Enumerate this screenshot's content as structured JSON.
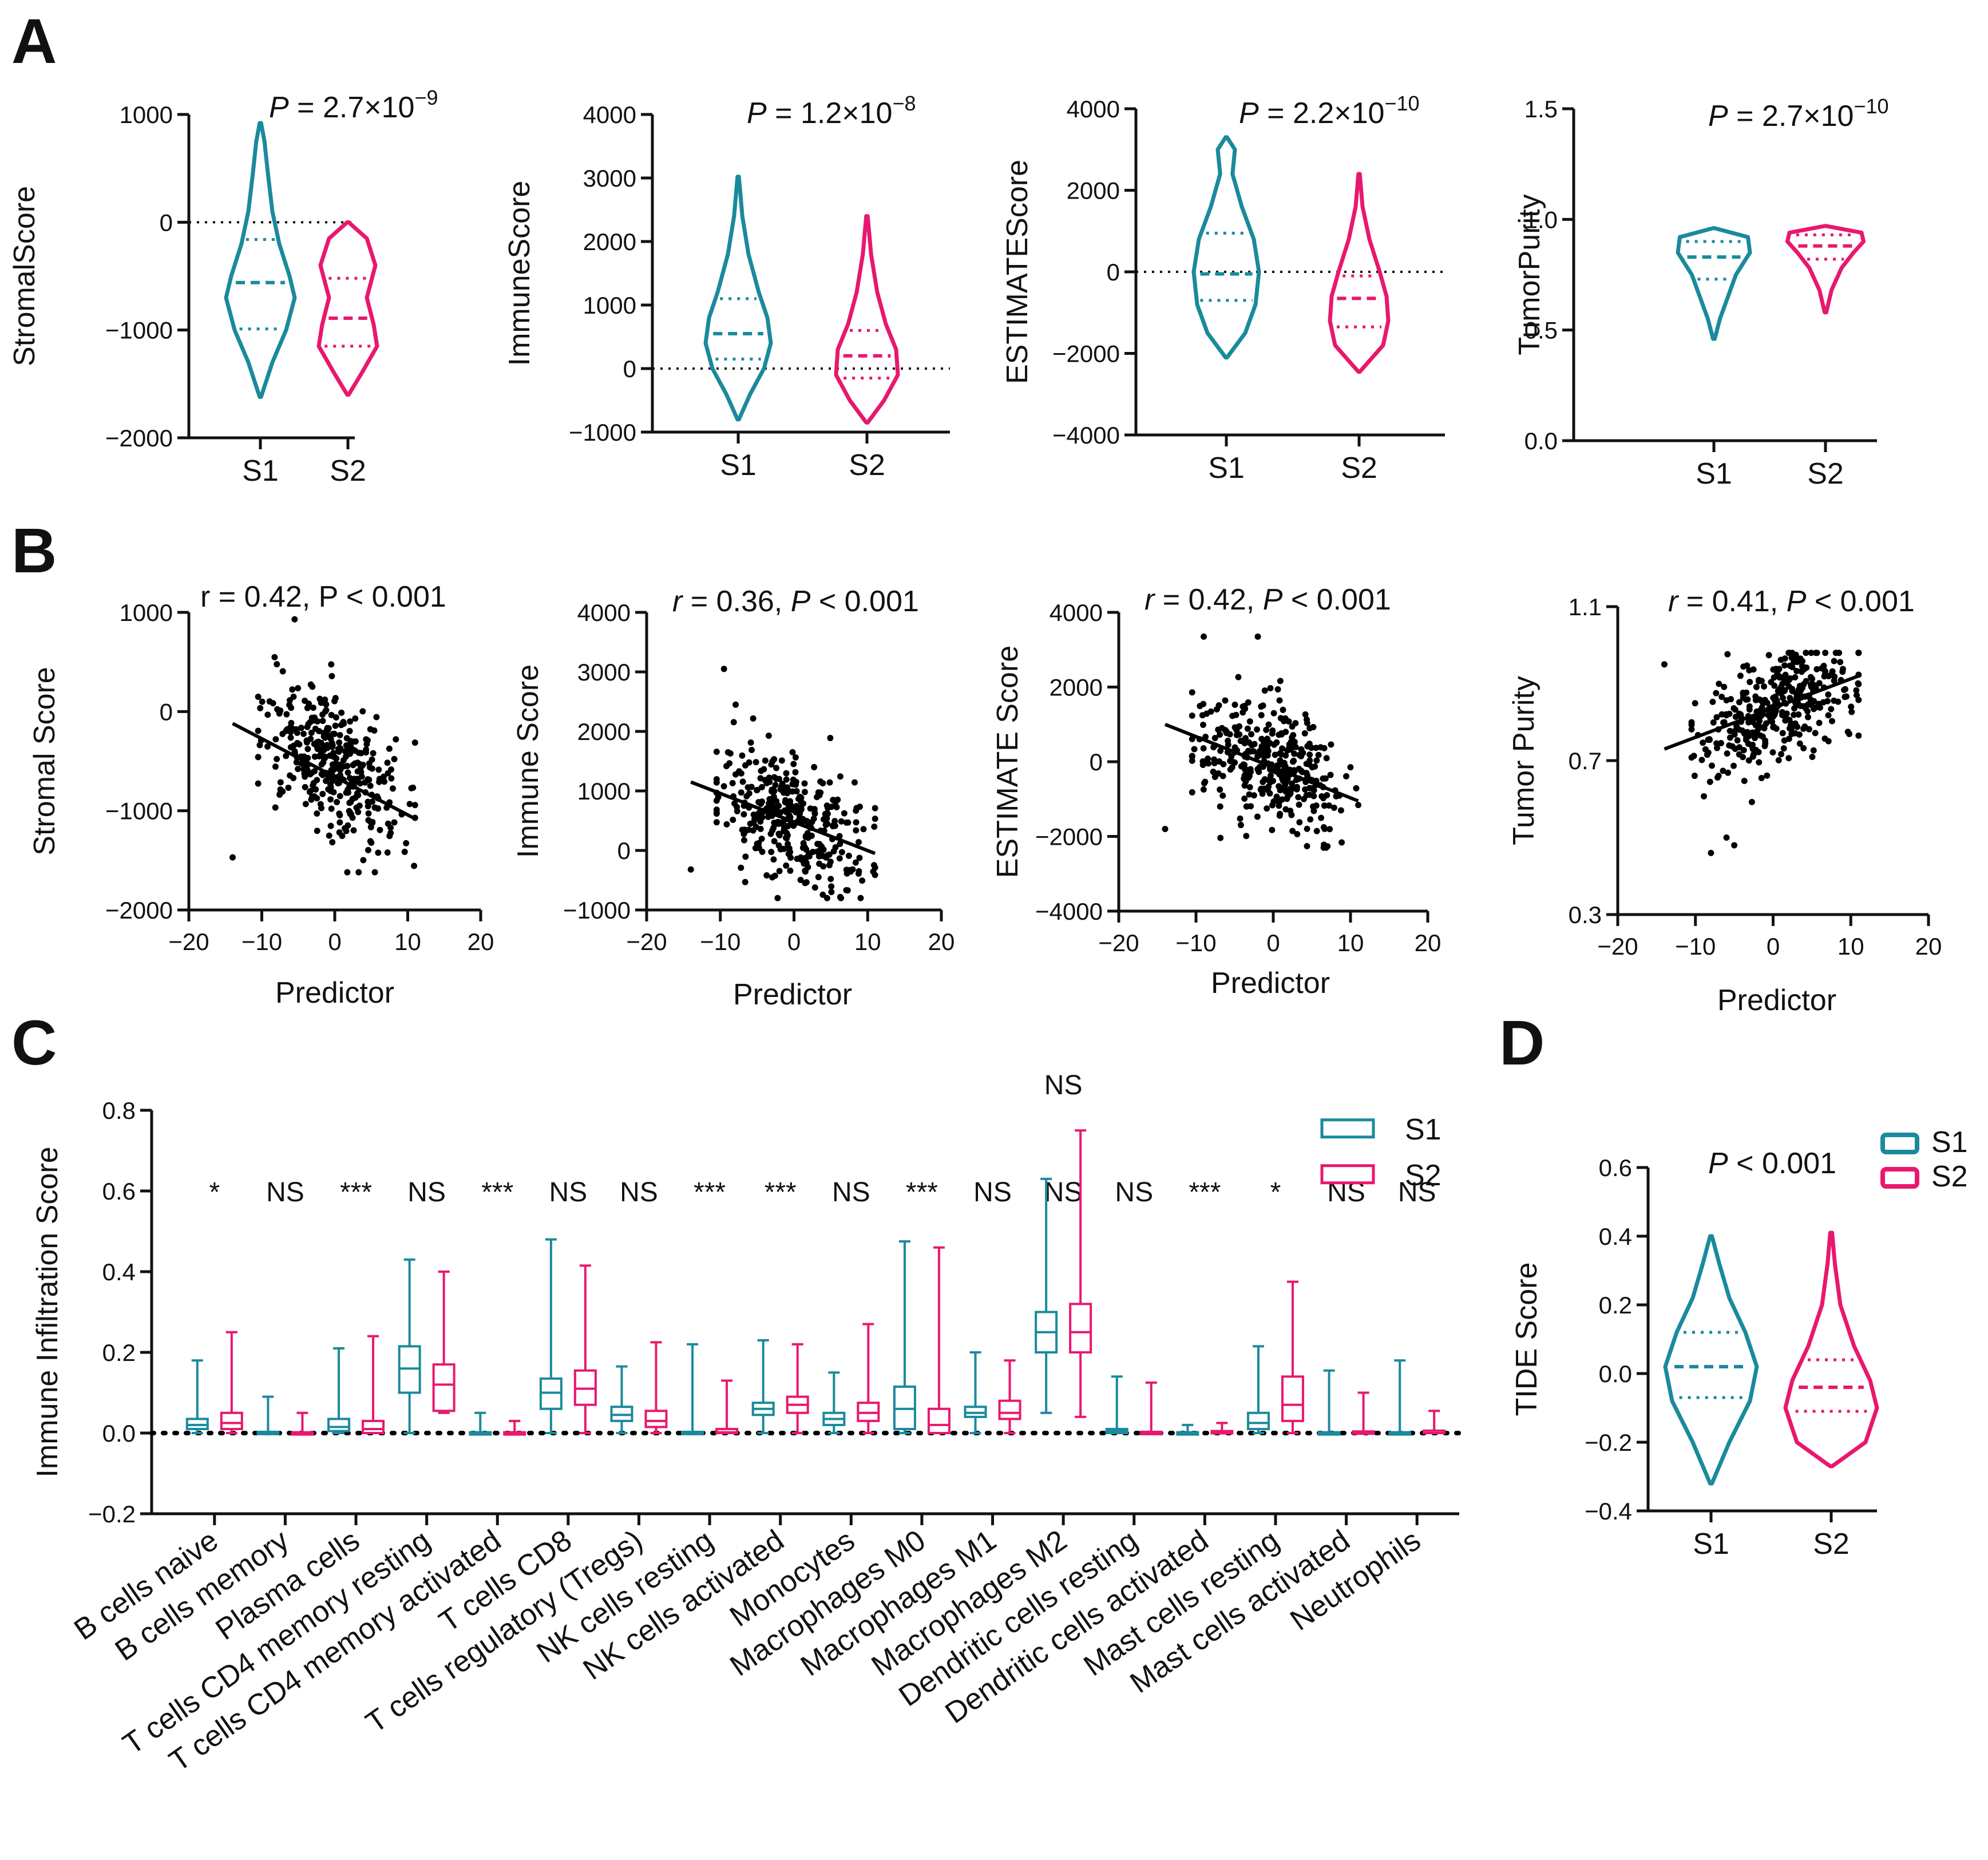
{
  "colors": {
    "s1": "#1a8a9c",
    "s2": "#e8186e",
    "axis": "#111111"
  },
  "panel_letters": {
    "A": "A",
    "B": "B",
    "C": "C",
    "D": "D"
  },
  "chart_data": [
    {
      "id": "A1",
      "type": "violin",
      "title": "",
      "ylabel": "StromalScore",
      "categories": [
        "S1",
        "S2"
      ],
      "ylim": [
        -2000,
        1000
      ],
      "yticks": [
        "−2000",
        "−1000",
        "0",
        "1000"
      ],
      "ytick_values": [
        -2000,
        -1000,
        0,
        1000
      ],
      "p_prefix": "P",
      "p_text": " = 2.7×10",
      "p_exp": "−9",
      "series": [
        {
          "name": "S1",
          "min": -1620,
          "max": 920,
          "median": -560,
          "q1": -990,
          "q3": -160,
          "width_ys": [
            -1620,
            -1300,
            -1000,
            -700,
            -500,
            -200,
            100,
            450,
            750,
            920
          ],
          "width_vals": [
            0.02,
            0.35,
            0.75,
            1.0,
            0.85,
            0.55,
            0.35,
            0.22,
            0.12,
            0.02
          ]
        },
        {
          "name": "S2",
          "min": -1600,
          "max": 0,
          "median": -890,
          "q1": -1150,
          "q3": -520,
          "width_ys": [
            -1600,
            -1400,
            -1150,
            -950,
            -700,
            -400,
            -150,
            0
          ],
          "width_vals": [
            0.02,
            0.4,
            0.85,
            0.75,
            0.55,
            0.8,
            0.55,
            0.02
          ]
        }
      ]
    },
    {
      "id": "A2",
      "type": "violin",
      "ylabel": "ImmuneScore",
      "categories": [
        "S1",
        "S2"
      ],
      "ylim": [
        -1000,
        4000
      ],
      "yticks": [
        "−1000",
        "0",
        "1000",
        "2000",
        "3000",
        "4000"
      ],
      "ytick_values": [
        -1000,
        0,
        1000,
        2000,
        3000,
        4000
      ],
      "p_prefix": "P",
      "p_text": " = 1.2×10",
      "p_exp": "−8",
      "series": [
        {
          "name": "S1",
          "min": -800,
          "max": 3020,
          "median": 550,
          "q1": 150,
          "q3": 1100,
          "width_ys": [
            -800,
            -400,
            0,
            400,
            800,
            1200,
            1800,
            2400,
            3020
          ],
          "width_vals": [
            0.02,
            0.35,
            0.75,
            0.95,
            0.85,
            0.6,
            0.3,
            0.12,
            0.02
          ]
        },
        {
          "name": "S2",
          "min": -850,
          "max": 2400,
          "median": 200,
          "q1": -150,
          "q3": 600,
          "width_ys": [
            -850,
            -500,
            -100,
            300,
            700,
            1200,
            1800,
            2400
          ],
          "width_vals": [
            0.02,
            0.5,
            0.9,
            0.85,
            0.55,
            0.3,
            0.12,
            0.02
          ]
        }
      ]
    },
    {
      "id": "A3",
      "type": "violin",
      "ylabel": "ESTIMATEScore",
      "categories": [
        "S1",
        "S2"
      ],
      "ylim": [
        -4000,
        4000
      ],
      "yticks": [
        "−4000",
        "−2000",
        "0",
        "2000",
        "4000"
      ],
      "ytick_values": [
        -4000,
        -2000,
        0,
        2000,
        4000
      ],
      "p_prefix": "P",
      "p_text": " = 2.2×10",
      "p_exp": "−10",
      "series": [
        {
          "name": "S1",
          "min": -2100,
          "max": 3300,
          "median": -50,
          "q1": -700,
          "q3": 950,
          "width_ys": [
            -2100,
            -1500,
            -800,
            0,
            800,
            1600,
            2400,
            3000,
            3300
          ],
          "width_vals": [
            0.02,
            0.55,
            0.85,
            0.95,
            0.8,
            0.45,
            0.18,
            0.25,
            0.02
          ]
        },
        {
          "name": "S2",
          "min": -2450,
          "max": 2400,
          "median": -650,
          "q1": -1350,
          "q3": -100,
          "width_ys": [
            -2450,
            -1800,
            -1200,
            -600,
            0,
            800,
            1600,
            2400
          ],
          "width_vals": [
            0.02,
            0.7,
            0.85,
            0.8,
            0.6,
            0.3,
            0.1,
            0.02
          ]
        }
      ]
    },
    {
      "id": "A4",
      "type": "violin",
      "ylabel": "TumorPurity",
      "categories": [
        "S1",
        "S2"
      ],
      "ylim": [
        0.0,
        1.5
      ],
      "yticks": [
        "0.0",
        "0.5",
        "1.0",
        "1.5"
      ],
      "ytick_values": [
        0.0,
        0.5,
        1.0,
        1.5
      ],
      "p_prefix": "P",
      "p_text": " = 2.7×10",
      "p_exp": "−10",
      "series": [
        {
          "name": "S1",
          "min": 0.46,
          "max": 0.96,
          "median": 0.83,
          "q1": 0.73,
          "q3": 0.9,
          "width_ys": [
            0.46,
            0.55,
            0.65,
            0.75,
            0.85,
            0.92,
            0.96
          ],
          "width_vals": [
            0.02,
            0.15,
            0.35,
            0.55,
            0.9,
            0.85,
            0.02
          ]
        },
        {
          "name": "S2",
          "min": 0.58,
          "max": 0.97,
          "median": 0.88,
          "q1": 0.82,
          "q3": 0.93,
          "width_ys": [
            0.58,
            0.68,
            0.78,
            0.85,
            0.9,
            0.94,
            0.97
          ],
          "width_vals": [
            0.02,
            0.15,
            0.4,
            0.7,
            0.95,
            0.9,
            0.02
          ]
        }
      ]
    },
    {
      "id": "B1",
      "type": "scatter",
      "xlabel": "Predictor",
      "ylabel": "Stromal Score",
      "xlim": [
        -20,
        20
      ],
      "ylim": [
        -2000,
        1000
      ],
      "xticks": [
        "−20",
        "−10",
        "0",
        "10",
        "20"
      ],
      "xtick_values": [
        -20,
        -10,
        0,
        10,
        20
      ],
      "yticks": [
        "−2000",
        "−1000",
        "0",
        "1000"
      ],
      "ytick_values": [
        -2000,
        -1000,
        0,
        1000
      ],
      "annotation": "r = 0.42, P < 0.001",
      "italic_annotation": false,
      "fit": {
        "x0": -14,
        "y0": -120,
        "x1": 11,
        "y1": -1080
      },
      "cloud": {
        "n": 360,
        "x_mean": 0,
        "x_sd": 5,
        "slope": -38,
        "intercept": -560,
        "resid_sd": 330,
        "ymin": -1620,
        "ymax": 920
      },
      "outliers": [
        [
          -14,
          -1470
        ],
        [
          -5.5,
          930
        ]
      ]
    },
    {
      "id": "B2",
      "type": "scatter",
      "xlabel": "Predictor",
      "ylabel": "Immune Score",
      "xlim": [
        -20,
        20
      ],
      "ylim": [
        -1000,
        4000
      ],
      "xticks": [
        "−20",
        "−10",
        "0",
        "10",
        "20"
      ],
      "xtick_values": [
        -20,
        -10,
        0,
        10,
        20
      ],
      "yticks": [
        "−1000",
        "0",
        "1000",
        "2000",
        "3000",
        "4000"
      ],
      "ytick_values": [
        -1000,
        0,
        1000,
        2000,
        3000,
        4000
      ],
      "annotation_parts": [
        "r",
        " = 0.36, ",
        "P",
        " < 0.001"
      ],
      "fit": {
        "x0": -14,
        "y0": 1150,
        "x1": 11,
        "y1": -50
      },
      "cloud": {
        "n": 360,
        "x_mean": 0,
        "x_sd": 5,
        "slope": -48,
        "intercept": 480,
        "resid_sd": 520,
        "ymin": -800,
        "ymax": 2600
      },
      "outliers": [
        [
          -14,
          -320
        ],
        [
          -9.5,
          3050
        ]
      ]
    },
    {
      "id": "B3",
      "type": "scatter",
      "xlabel": "Predictor",
      "ylabel": "ESTIMATE Score",
      "xlim": [
        -20,
        20
      ],
      "ylim": [
        -4000,
        4000
      ],
      "xticks": [
        "−20",
        "−10",
        "0",
        "10",
        "20"
      ],
      "xtick_values": [
        -20,
        -10,
        0,
        10,
        20
      ],
      "yticks": [
        "−4000",
        "−2000",
        "0",
        "2000",
        "4000"
      ],
      "ytick_values": [
        -4000,
        -2000,
        0,
        2000,
        4000
      ],
      "annotation_parts": [
        "r",
        " = 0.42, ",
        "P",
        " < 0.001"
      ],
      "fit": {
        "x0": -14,
        "y0": 1000,
        "x1": 11,
        "y1": -1050
      },
      "cloud": {
        "n": 360,
        "x_mean": 0,
        "x_sd": 5,
        "slope": -82,
        "intercept": -80,
        "resid_sd": 780,
        "ymin": -2300,
        "ymax": 3000
      },
      "outliers": [
        [
          -14,
          -1800
        ],
        [
          -9,
          3350
        ],
        [
          -2,
          3350
        ]
      ]
    },
    {
      "id": "B4",
      "type": "scatter",
      "xlabel": "Predictor",
      "ylabel": "Tumor Purity",
      "xlim": [
        -20,
        20
      ],
      "ylim": [
        0.3,
        1.1
      ],
      "xticks": [
        "−20",
        "−10",
        "0",
        "10",
        "20"
      ],
      "xtick_values": [
        -20,
        -10,
        0,
        10,
        20
      ],
      "yticks": [
        "0.3",
        "0.7",
        "1.1"
      ],
      "ytick_values": [
        0.3,
        0.7,
        1.1
      ],
      "annotation_parts": [
        "r",
        " = 0.41, ",
        "P",
        " < 0.001"
      ],
      "fit": {
        "x0": -14,
        "y0": 0.73,
        "x1": 11,
        "y1": 0.92
      },
      "cloud": {
        "n": 360,
        "x_mean": 0,
        "x_sd": 5,
        "slope": 0.0076,
        "intercept": 0.835,
        "resid_sd": 0.075,
        "ymin": 0.55,
        "ymax": 0.98
      },
      "outliers": [
        [
          -14,
          0.95
        ],
        [
          -8,
          0.46
        ],
        [
          -5,
          0.48
        ],
        [
          -6,
          0.5
        ]
      ]
    },
    {
      "id": "C",
      "type": "boxplot",
      "ylabel": "Immune Infiltration Score",
      "ylim": [
        -0.2,
        0.8
      ],
      "yticks": [
        "−0.2",
        "0.0",
        "0.2",
        "0.4",
        "0.6",
        "0.8"
      ],
      "ytick_values": [
        -0.2,
        0.0,
        0.2,
        0.4,
        0.6,
        0.8
      ],
      "legend": [
        "S1",
        "S2"
      ],
      "categories": [
        "B cells naive",
        "B cells memory",
        "Plasma cells",
        "T cells CD4 memory resting",
        "T cells CD4 memory activated",
        "T cells CD8",
        "T cells regulatory (Tregs)",
        "NK cells resting",
        "NK cells activated",
        "Monocytes",
        "Macrophages M0",
        "Macrophages M1",
        "Macrophages M2",
        "Dendritic cells resting",
        "Dendritic cells activated",
        "Mast cells resting",
        "Mast cells activated",
        "Neutrophils"
      ],
      "significance": [
        "*",
        "NS",
        "***",
        "NS",
        "***",
        "NS",
        "NS",
        "***",
        "***",
        "NS",
        "***",
        "NS",
        "NS",
        "NS",
        "***",
        "*",
        "NS",
        "NS"
      ],
      "series": [
        {
          "name": "S1",
          "boxes": [
            [
              0,
              0.01,
              0.02,
              0.035,
              0.18
            ],
            [
              0,
              0,
              0,
              0.003,
              0.09
            ],
            [
              0,
              0.005,
              0.015,
              0.035,
              0.21
            ],
            [
              0,
              0.1,
              0.16,
              0.215,
              0.43
            ],
            [
              0,
              0,
              0,
              0.002,
              0.05
            ],
            [
              0,
              0.06,
              0.1,
              0.135,
              0.48
            ],
            [
              0,
              0.03,
              0.045,
              0.065,
              0.165
            ],
            [
              0,
              0,
              0,
              0.003,
              0.22
            ],
            [
              0,
              0.045,
              0.06,
              0.075,
              0.23
            ],
            [
              0,
              0.02,
              0.035,
              0.05,
              0.15
            ],
            [
              0,
              0.01,
              0.06,
              0.115,
              0.475
            ],
            [
              0,
              0.04,
              0.05,
              0.065,
              0.2
            ],
            [
              0.05,
              0.2,
              0.25,
              0.3,
              0.63
            ],
            [
              0,
              0,
              0.005,
              0.01,
              0.14
            ],
            [
              0,
              0,
              0,
              0.002,
              0.02
            ],
            [
              0,
              0.01,
              0.025,
              0.05,
              0.215
            ],
            [
              0,
              0,
              0,
              0.002,
              0.155
            ],
            [
              0,
              0,
              0,
              0.002,
              0.18
            ]
          ]
        },
        {
          "name": "S2",
          "boxes": [
            [
              0,
              0.01,
              0.025,
              0.05,
              0.25
            ],
            [
              0,
              0,
              0,
              0.002,
              0.05
            ],
            [
              0,
              0,
              0.01,
              0.03,
              0.24
            ],
            [
              0.05,
              0.055,
              0.12,
              0.17,
              0.4
            ],
            [
              0,
              0,
              0,
              0.002,
              0.03
            ],
            [
              0,
              0.07,
              0.11,
              0.155,
              0.415
            ],
            [
              0,
              0.015,
              0.03,
              0.055,
              0.225
            ],
            [
              0,
              0,
              0.002,
              0.01,
              0.13
            ],
            [
              0,
              0.05,
              0.07,
              0.09,
              0.22
            ],
            [
              0,
              0.03,
              0.05,
              0.075,
              0.27
            ],
            [
              0,
              0,
              0.02,
              0.06,
              0.46
            ],
            [
              0,
              0.035,
              0.05,
              0.08,
              0.18
            ],
            [
              0.04,
              0.2,
              0.25,
              0.32,
              0.75
            ],
            [
              0,
              0,
              0,
              0.003,
              0.125
            ],
            [
              0,
              0,
              0,
              0.005,
              0.025
            ],
            [
              0,
              0.03,
              0.07,
              0.14,
              0.375
            ],
            [
              0,
              0,
              0,
              0.004,
              0.1
            ],
            [
              0,
              0,
              0,
              0.006,
              0.055
            ]
          ]
        }
      ]
    },
    {
      "id": "D",
      "type": "violin",
      "ylabel": "TIDE Score",
      "categories": [
        "S1",
        "S2"
      ],
      "ylim": [
        -0.4,
        0.6
      ],
      "yticks": [
        "−0.4",
        "−0.2",
        "0.0",
        "0.2",
        "0.4",
        "0.6"
      ],
      "ytick_values": [
        -0.4,
        -0.2,
        0.0,
        0.2,
        0.4,
        0.6
      ],
      "p_prefix": "P",
      "p_text": " < 0.001",
      "p_exp": "",
      "legend": [
        "S1",
        "S2"
      ],
      "series": [
        {
          "name": "S1",
          "min": -0.32,
          "max": 0.4,
          "median": 0.02,
          "q1": -0.07,
          "q3": 0.12,
          "width_ys": [
            -0.32,
            -0.2,
            -0.08,
            0.02,
            0.12,
            0.22,
            0.32,
            0.4
          ],
          "width_vals": [
            0.02,
            0.4,
            0.85,
            1.0,
            0.75,
            0.4,
            0.18,
            0.02
          ]
        },
        {
          "name": "S2",
          "min": -0.27,
          "max": 0.41,
          "median": -0.04,
          "q1": -0.11,
          "q3": 0.04,
          "width_ys": [
            -0.27,
            -0.2,
            -0.1,
            -0.02,
            0.08,
            0.2,
            0.32,
            0.41
          ],
          "width_vals": [
            0.02,
            0.75,
            1.0,
            0.85,
            0.5,
            0.2,
            0.08,
            0.02
          ]
        }
      ]
    }
  ]
}
